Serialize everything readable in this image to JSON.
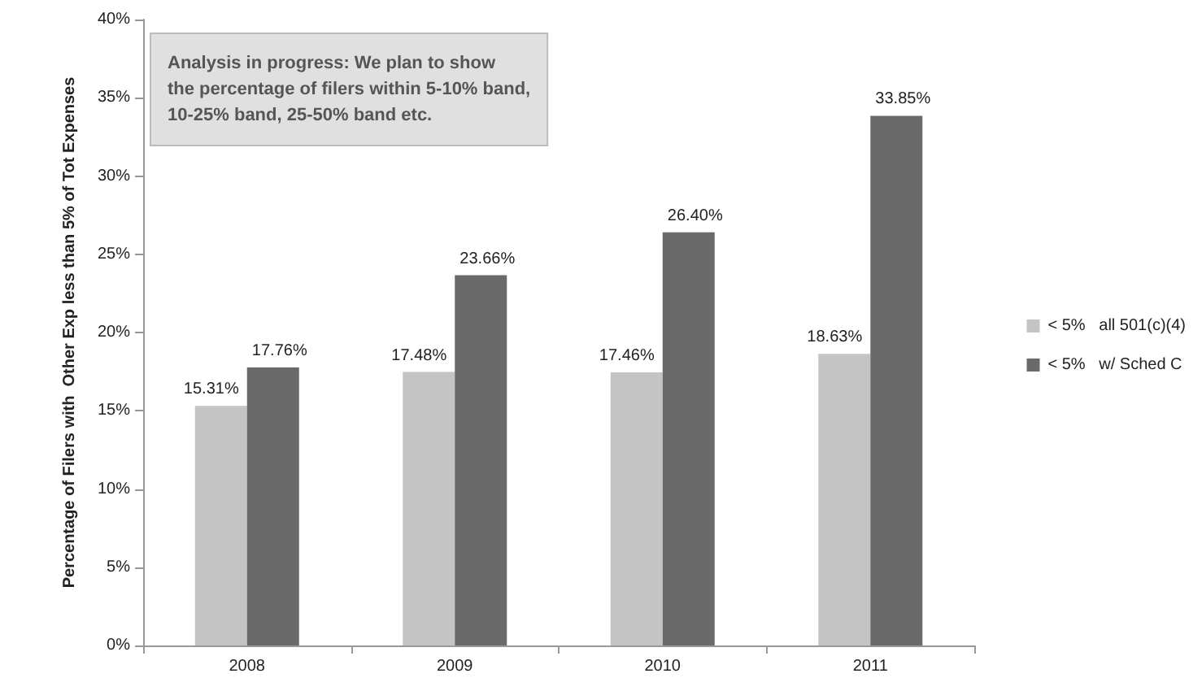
{
  "chart_data": {
    "type": "bar",
    "ylabel": "Percentage of Filers with  Other Exp less than 5% of Tot Expenses",
    "categories": [
      "2008",
      "2009",
      "2010",
      "2011"
    ],
    "series": [
      {
        "name": "< 5%   all 501(c)(4)",
        "color": "#c4c4c4",
        "values": [
          15.31,
          17.48,
          17.46,
          18.63
        ],
        "value_labels": [
          "15.31%",
          "17.48%",
          "17.46%",
          "18.63%"
        ]
      },
      {
        "name": "< 5%   w/ Sched C",
        "color": "#6a6a6a",
        "values": [
          17.76,
          23.66,
          26.4,
          33.85
        ],
        "value_labels": [
          "17.76%",
          "23.66%",
          "26.40%",
          "33.85%"
        ]
      }
    ],
    "ylim": [
      0,
      40
    ],
    "yticks": [
      {
        "value": 0,
        "label": "0%"
      },
      {
        "value": 5,
        "label": "5%"
      },
      {
        "value": 10,
        "label": "10%"
      },
      {
        "value": 15,
        "label": "15%"
      },
      {
        "value": 20,
        "label": "20%"
      },
      {
        "value": 25,
        "label": "25%"
      },
      {
        "value": 30,
        "label": "30%"
      },
      {
        "value": 35,
        "label": "35%"
      },
      {
        "value": 40,
        "label": "40%"
      }
    ],
    "annotations": [
      "Analysis in progress: We plan to show\nthe percentage of filers within 5-10% band,\n10-25% band, 25-50% band etc."
    ],
    "legend": "right",
    "grid": false
  }
}
